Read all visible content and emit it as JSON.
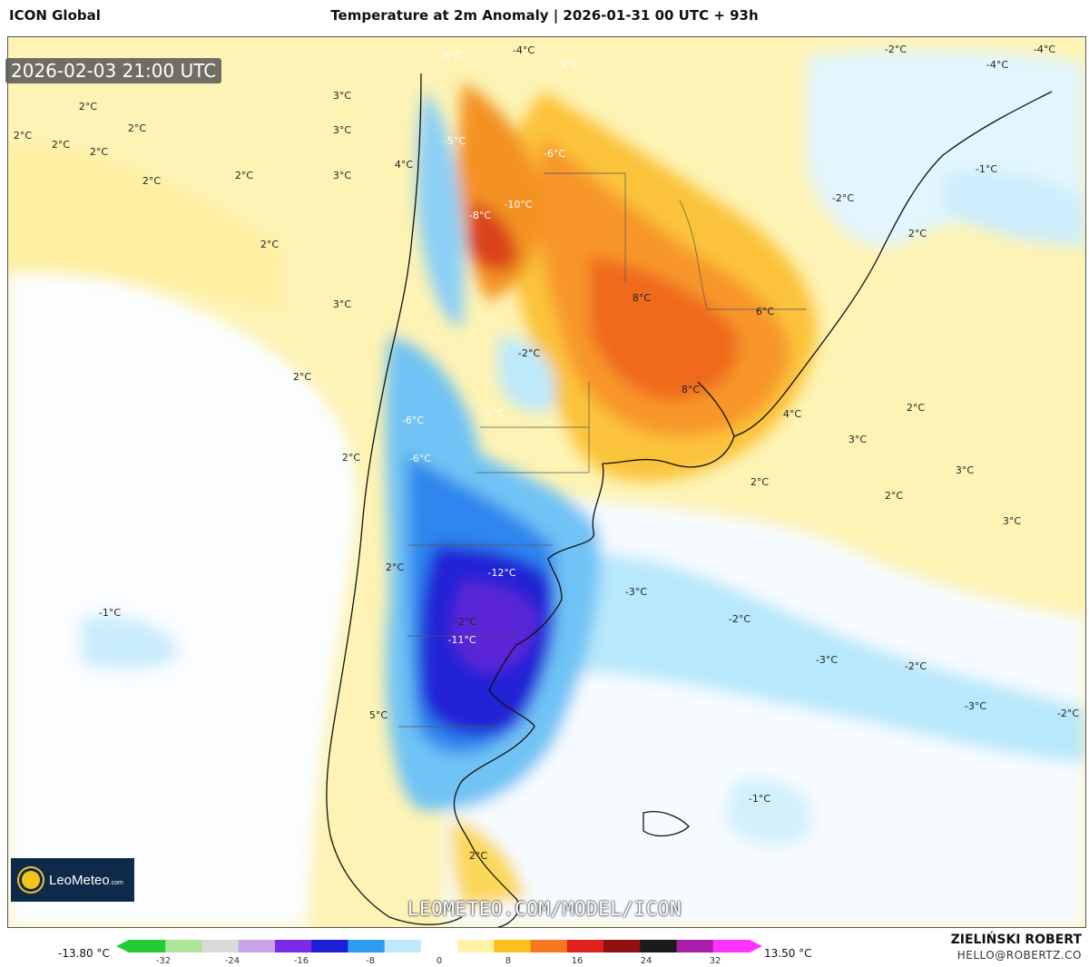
{
  "header": {
    "model": "ICON Global",
    "title": "Temperature at 2m Anomaly | 2026-01-31 00 UTC + 93h"
  },
  "valid_time": "2026-02-03 21:00 UTC",
  "watermark": "LEOMETEO.COM/MODEL/ICON",
  "logo": {
    "name": "LeoMeteo",
    "suffix": ".com"
  },
  "author": {
    "name": "ZIELIŃSKI ROBERT",
    "email": "HELLO@ROBERTZ.CO"
  },
  "colorbar": {
    "min_label": "-13.80 °C",
    "max_label": "13.50 °C",
    "ticks": [
      "-32",
      "-24",
      "-16",
      "-8",
      "0",
      "8",
      "16",
      "24",
      "32"
    ],
    "range": [
      -36,
      36
    ],
    "colors": [
      "#22cc33",
      "#aee39a",
      "#d9d9d9",
      "#c9a3e6",
      "#7b2be6",
      "#1f1fd6",
      "#2e9cf0",
      "#bfe9fb",
      "#ffffff",
      "#fff3a8",
      "#fbbf1e",
      "#f7781e",
      "#e0201a",
      "#8e1010",
      "#1b1b1b",
      "#a61fa6",
      "#ff33ff"
    ]
  },
  "labels": [
    {
      "t": "3°C"
    },
    {
      "t": "2°C"
    },
    {
      "t": "2°C"
    },
    {
      "t": "2°C"
    },
    {
      "t": "2°C"
    },
    {
      "t": "2°C"
    },
    {
      "t": "2°C"
    },
    {
      "t": "3°C"
    },
    {
      "t": "3°C"
    },
    {
      "t": "2°C"
    },
    {
      "t": "4°C"
    },
    {
      "t": "3°C"
    },
    {
      "t": "2°C"
    },
    {
      "t": "2°C"
    },
    {
      "t": "-6°C"
    },
    {
      "t": "-8°C"
    },
    {
      "t": "-10°C"
    },
    {
      "t": "-6°C"
    },
    {
      "t": "-2°C"
    },
    {
      "t": "-5°C"
    },
    {
      "t": "-6°C"
    },
    {
      "t": "-6°C"
    },
    {
      "t": "-12°C"
    },
    {
      "t": "-11°C"
    },
    {
      "t": "-2°C"
    },
    {
      "t": "-1°C"
    },
    {
      "t": "-3°C"
    },
    {
      "t": "-2°C"
    },
    {
      "t": "-3°C"
    },
    {
      "t": "-2°C"
    },
    {
      "t": "-3°C"
    },
    {
      "t": "-2°C"
    },
    {
      "t": "-1°C"
    },
    {
      "t": "8°C"
    },
    {
      "t": "6°C"
    },
    {
      "t": "8°C"
    },
    {
      "t": "4°C"
    },
    {
      "t": "3°C"
    },
    {
      "t": "2°C"
    },
    {
      "t": "3°C"
    },
    {
      "t": "2°C"
    },
    {
      "t": "2°C"
    },
    {
      "t": "3°C"
    },
    {
      "t": "2°C"
    },
    {
      "t": "-1°C"
    },
    {
      "t": "-2°C"
    },
    {
      "t": "-2°C"
    },
    {
      "t": "-4°C"
    },
    {
      "t": "-4°C"
    },
    {
      "t": "-4°C"
    },
    {
      "t": "-5°C"
    },
    {
      "t": "-5°C"
    },
    {
      "t": "5°C"
    },
    {
      "t": "2°C"
    },
    {
      "t": "2°C"
    },
    {
      "t": "2°C"
    }
  ]
}
